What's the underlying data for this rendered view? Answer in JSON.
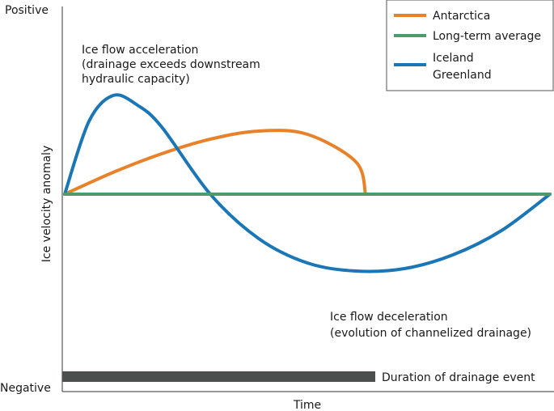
{
  "chart_data": {
    "type": "line",
    "xlabel": "Time",
    "ylabel": "Ice velocity anomaly",
    "y_top_label": "Positive",
    "y_bottom_label": "Negative",
    "xlim": [
      0,
      1
    ],
    "ylim": [
      -1.3,
      1.3
    ],
    "series": [
      {
        "name": "Antarctica",
        "color": "#e8822a",
        "x": [
          0,
          0.1,
          0.2,
          0.3,
          0.4,
          0.5,
          0.6,
          0.62
        ],
        "y": [
          0,
          0.27,
          0.5,
          0.68,
          0.78,
          0.74,
          0.4,
          0
        ]
      },
      {
        "name": "Long-term average",
        "color": "#4e9a6d",
        "x": [
          0,
          1
        ],
        "y": [
          0,
          0
        ]
      },
      {
        "name": [
          "Iceland",
          "Greenland"
        ],
        "color": "#1a76b5",
        "x": [
          0,
          0.05,
          0.1,
          0.15,
          0.2,
          0.3,
          0.4,
          0.5,
          0.6,
          0.7,
          0.8,
          0.9,
          1
        ],
        "y": [
          0,
          0.9,
          1.22,
          1.1,
          0.83,
          0.0,
          -0.55,
          -0.85,
          -0.95,
          -0.92,
          -0.75,
          -0.45,
          0
        ]
      }
    ],
    "annotations": {
      "acceleration": [
        "Ice flow acceleration",
        "(drainage exceeds downstream",
        "hydraulic capacity)"
      ],
      "deceleration": [
        "Ice flow deceleration",
        "(evolution of channelized drainage)"
      ],
      "duration_label": "Duration of drainage event",
      "duration_end_x": 0.64
    },
    "bar_color": "#4b4f4d",
    "legend_position": "top-right",
    "grid": false
  }
}
